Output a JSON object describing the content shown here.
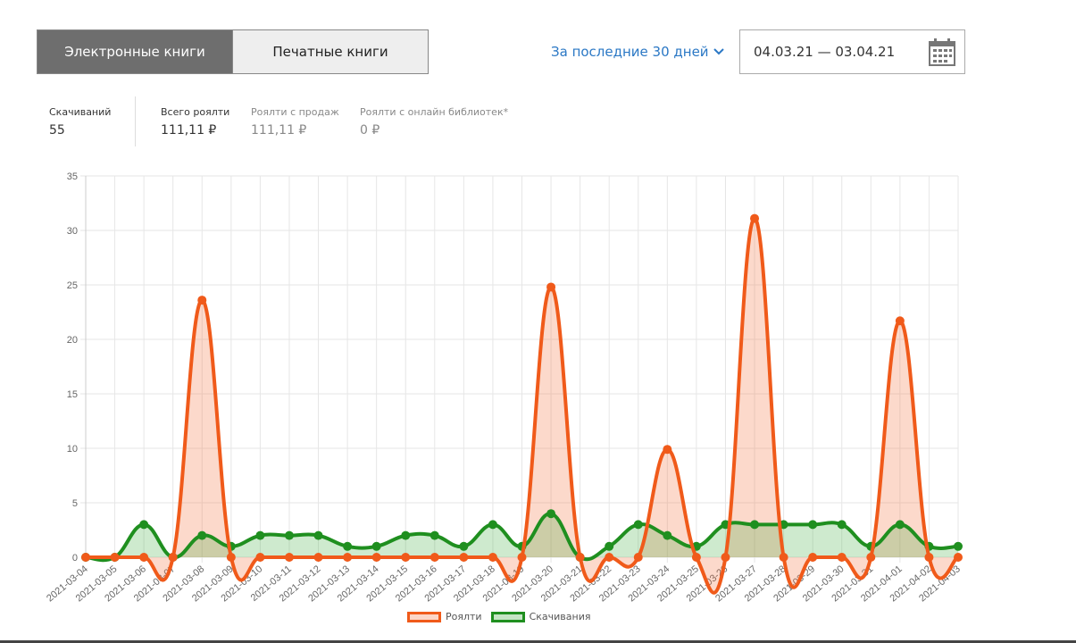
{
  "tabs": {
    "ebooks": "Электронные книги",
    "print": "Печатные книги"
  },
  "period": {
    "label": "За последние 30 дней"
  },
  "date_range": {
    "value": "04.03.21 — 03.04.21"
  },
  "stats": [
    {
      "label": "Скачиваний",
      "value": "55"
    },
    {
      "label": "Всего роялти",
      "value": "111,11 ₽"
    },
    {
      "label": "Роялти с продаж",
      "value": "111,11 ₽"
    },
    {
      "label": "Роялти с онлайн библиотек*",
      "value": "0 ₽"
    }
  ],
  "chart_data": {
    "type": "line",
    "categories": [
      "2021-03-04",
      "2021-03-05",
      "2021-03-06",
      "2021-03-07",
      "2021-03-08",
      "2021-03-09",
      "2021-03-10",
      "2021-03-11",
      "2021-03-12",
      "2021-03-13",
      "2021-03-14",
      "2021-03-15",
      "2021-03-16",
      "2021-03-17",
      "2021-03-18",
      "2021-03-19",
      "2021-03-20",
      "2021-03-21",
      "2021-03-22",
      "2021-03-23",
      "2021-03-24",
      "2021-03-25",
      "2021-03-26",
      "2021-03-27",
      "2021-03-28",
      "2021-03-29",
      "2021-03-30",
      "2021-03-31",
      "2021-04-01",
      "2021-04-02",
      "2021-04-03"
    ],
    "series": [
      {
        "name": "Роялти",
        "color": "#f05a1a",
        "fill": "rgba(245,120,70,0.28)",
        "values": [
          0,
          0,
          0,
          0,
          23.6,
          0,
          0,
          0,
          0,
          0,
          0,
          0,
          0,
          0,
          0,
          0,
          24.8,
          0,
          0,
          0,
          9.9,
          0,
          0,
          31.1,
          0,
          0,
          0,
          0,
          21.7,
          0,
          0
        ]
      },
      {
        "name": "Скачивания",
        "color": "#1f8f1f",
        "fill": "rgba(60,170,60,0.25)",
        "values": [
          0,
          0,
          3,
          0,
          2,
          1,
          2,
          2,
          2,
          1,
          1,
          2,
          2,
          1,
          3,
          1,
          4,
          0,
          1,
          3,
          2,
          1,
          3,
          3,
          3,
          3,
          3,
          1,
          3,
          1,
          1
        ]
      }
    ],
    "ylim": [
      0,
      35
    ],
    "yticks": [
      0,
      5,
      10,
      15,
      20,
      25,
      30,
      35
    ],
    "grid": true,
    "legend": "bottom"
  }
}
